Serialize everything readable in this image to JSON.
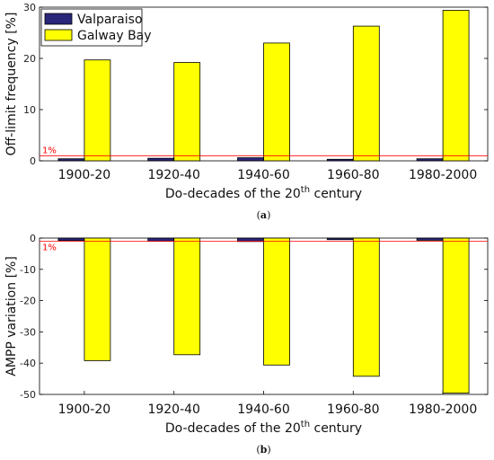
{
  "colors": {
    "valparaiso": "#2a2679",
    "galway": "#ffff00",
    "threshold": "#ff0000"
  },
  "chart_data": [
    {
      "type": "bar",
      "panel_label": "(a)",
      "categories": [
        "1900-20",
        "1920-40",
        "1940-60",
        "1960-80",
        "1980-2000"
      ],
      "series": [
        {
          "name": "Valparaiso",
          "values": [
            0.4,
            0.5,
            0.6,
            0.3,
            0.4
          ]
        },
        {
          "name": "Galway Bay",
          "values": [
            19.7,
            19.2,
            23.0,
            26.3,
            29.4
          ]
        }
      ],
      "threshold": {
        "value": 1,
        "label": "1%"
      },
      "ylim": [
        0,
        30
      ],
      "yticks": [
        0,
        10,
        20,
        30
      ],
      "ylabel": "Off-limit frequency [%]",
      "xlabel_main": "Do-decades of the 20",
      "xlabel_sup": "th",
      "xlabel_tail": " century",
      "legend_position": "top-left"
    },
    {
      "type": "bar",
      "panel_label": "(b)",
      "categories": [
        "1900-20",
        "1920-40",
        "1940-60",
        "1960-80",
        "1980-2000"
      ],
      "series": [
        {
          "name": "Valparaiso",
          "values": [
            -0.8,
            -1.0,
            -1.1,
            -0.5,
            -0.7
          ]
        },
        {
          "name": "Galway Bay",
          "values": [
            -39.2,
            -37.3,
            -40.6,
            -44.2,
            -49.6
          ]
        }
      ],
      "threshold": {
        "value": -1,
        "label": "1%"
      },
      "ylim": [
        -50,
        0
      ],
      "yticks": [
        0,
        -10,
        -20,
        -30,
        -40,
        -50
      ],
      "ylabel": "AMPP variation [%]",
      "xlabel_main": "Do-decades of the 20",
      "xlabel_sup": "th",
      "xlabel_tail": " century"
    }
  ]
}
